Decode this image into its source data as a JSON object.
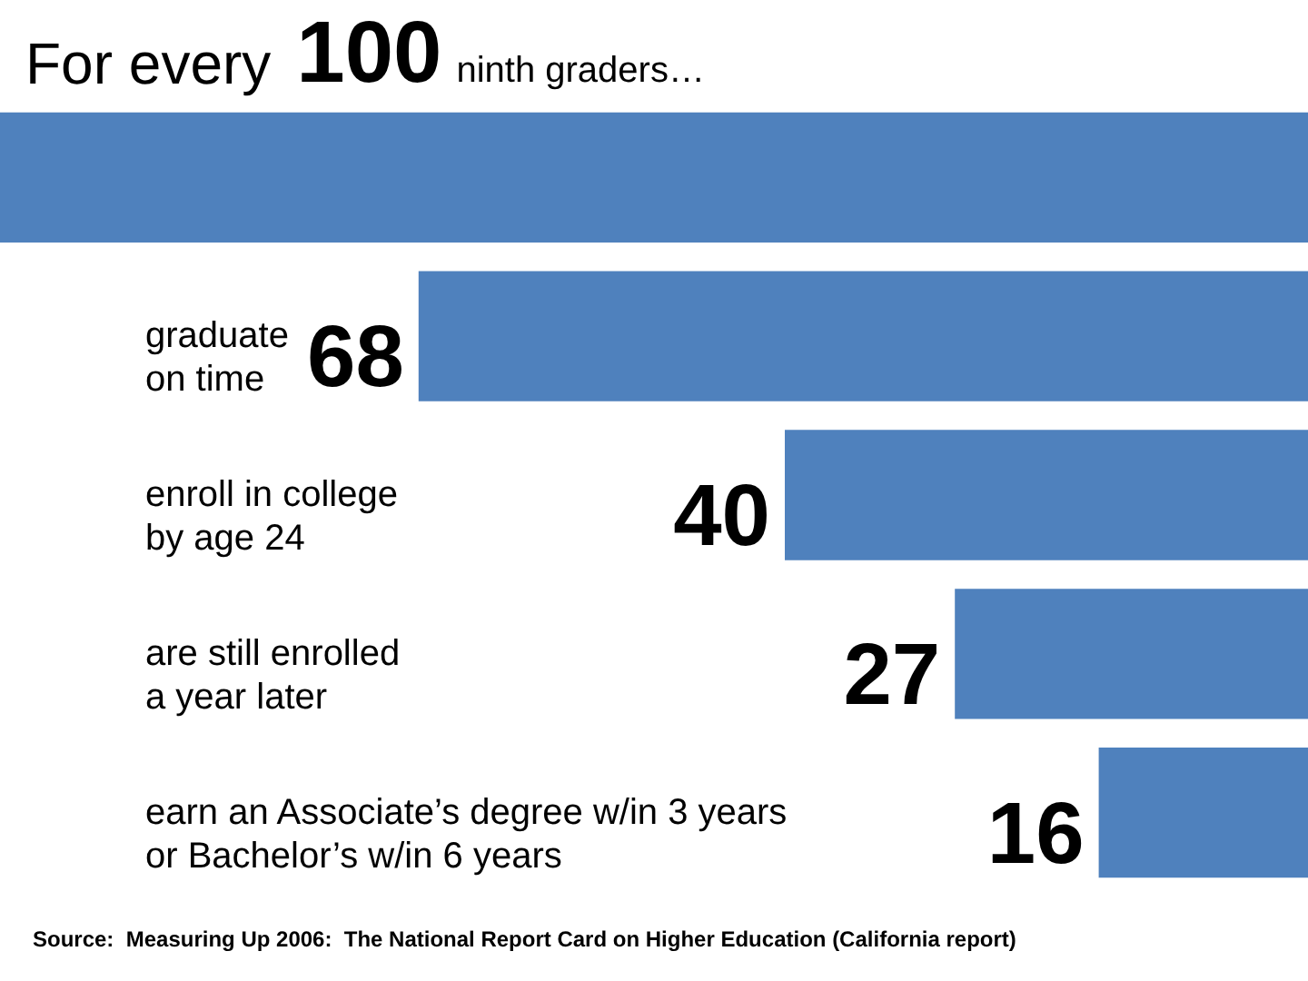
{
  "chart_data": {
    "type": "bar",
    "orientation": "horizontal",
    "title": "For every",
    "subtitle": "ninth graders…",
    "categories": [
      null,
      "graduate\non time",
      "enroll in college\nby age 24",
      "are still enrolled\na year later",
      "earn an Associate’s degree w/in 3 years\nor Bachelor’s w/in 6 years"
    ],
    "values": [
      100,
      68,
      40,
      27,
      16
    ],
    "value_labels": [
      "100",
      "68",
      "40",
      "27",
      "16"
    ],
    "color": "#4f81bd",
    "xlim": [
      100,
      0
    ],
    "tick_labels": "y",
    "annotations": [
      "Source:  Measuring Up 2006:  The National Report Card on Higher Education (California report)"
    ]
  }
}
